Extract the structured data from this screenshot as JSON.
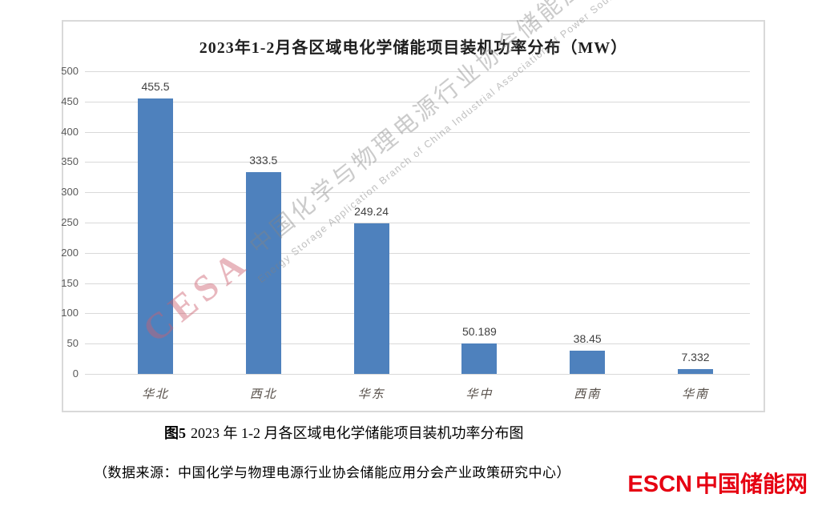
{
  "chart_data": {
    "type": "bar",
    "title": "2023年1-2月各区域电化学储能项目装机功率分布（MW）",
    "categories": [
      "华北",
      "西北",
      "华东",
      "华中",
      "西南",
      "华南"
    ],
    "values": [
      455.5,
      333.5,
      249.24,
      50.189,
      38.45,
      7.332
    ],
    "data_labels": [
      "455.5",
      "333.5",
      "249.24",
      "50.189",
      "38.45",
      "7.332"
    ],
    "xlabel": "",
    "ylabel": "",
    "ylim": [
      0,
      500
    ],
    "yticks": [
      500,
      450,
      400,
      350,
      300,
      250,
      200,
      150,
      100,
      50,
      0
    ],
    "grid": true,
    "legend": "none",
    "bar_color": "#4e81bd"
  },
  "watermark": {
    "cesa": "CESA",
    "zh": "中国化学与物理电源行业协会储能应用分会",
    "en": "Energy Storage Application Branch of China Industrial Association of Power Sources"
  },
  "caption": {
    "prefix": "图5",
    "text": "2023 年 1-2 月各区域电化学储能项目装机功率分布图"
  },
  "source_line": "（数据来源：中国化学与物理电源行业协会储能应用分会产业政策研究中心）",
  "logo": {
    "escn": "ESCN",
    "site": "中国储能网",
    "color": "#e60012"
  }
}
